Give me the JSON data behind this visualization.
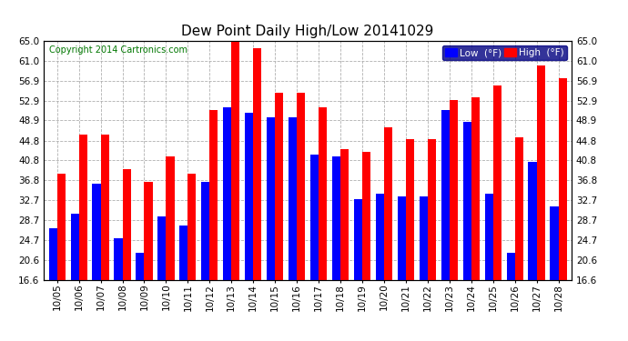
{
  "title": "Dew Point Daily High/Low 20141029",
  "copyright": "Copyright 2014 Cartronics.com",
  "legend_low": "Low  (°F)",
  "legend_high": "High  (°F)",
  "dates": [
    "10/05",
    "10/06",
    "10/07",
    "10/08",
    "10/09",
    "10/10",
    "10/11",
    "10/12",
    "10/13",
    "10/14",
    "10/15",
    "10/16",
    "10/17",
    "10/18",
    "10/19",
    "10/20",
    "10/21",
    "10/22",
    "10/23",
    "10/24",
    "10/25",
    "10/26",
    "10/27",
    "10/28"
  ],
  "high_vals": [
    38.0,
    46.0,
    46.0,
    39.0,
    36.5,
    41.5,
    38.0,
    51.0,
    65.0,
    63.5,
    54.5,
    54.5,
    51.5,
    43.0,
    42.5,
    47.5,
    45.0,
    45.0,
    53.0,
    53.5,
    56.0,
    45.5,
    60.0,
    57.5
  ],
  "low_vals": [
    27.0,
    30.0,
    36.0,
    25.0,
    22.0,
    29.5,
    27.5,
    36.5,
    51.5,
    50.5,
    49.5,
    49.5,
    42.0,
    41.5,
    33.0,
    34.0,
    33.5,
    33.5,
    51.0,
    48.5,
    34.0,
    22.0,
    40.5,
    31.5
  ],
  "ylim_min": 16.6,
  "ylim_max": 65.0,
  "yticks": [
    16.6,
    20.6,
    24.7,
    28.7,
    32.7,
    36.8,
    40.8,
    44.8,
    48.9,
    52.9,
    56.9,
    61.0,
    65.0
  ],
  "bar_width": 0.38,
  "high_color": "#ff0000",
  "low_color": "#0000ff",
  "background_color": "#ffffff",
  "grid_color": "#b0b0b0",
  "title_fontsize": 11,
  "tick_fontsize": 7.5,
  "legend_fontsize": 7.5,
  "copyright_color": "#007700"
}
